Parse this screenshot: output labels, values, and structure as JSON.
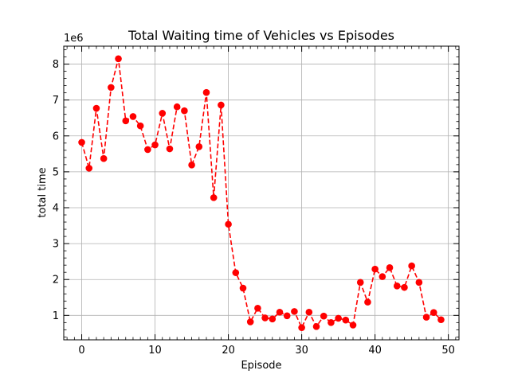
{
  "chart_data": {
    "type": "line",
    "title": "Total Waiting time of Vehicles vs Episodes",
    "xlabel": "Episode",
    "ylabel": "total time",
    "y_offset_label": "1e6",
    "y_scale_factor": 1000000,
    "xlim": [
      -2.45,
      51.45
    ],
    "ylim": [
      320000,
      8500000
    ],
    "xticks": [
      0,
      10,
      20,
      30,
      40,
      50
    ],
    "yticks": [
      1,
      2,
      3,
      4,
      5,
      6,
      7,
      8
    ],
    "grid": true,
    "series": [
      {
        "color": "#ff0000",
        "line_style": "dashed",
        "marker": "circle",
        "x": [
          0,
          1,
          2,
          3,
          4,
          5,
          6,
          7,
          8,
          9,
          10,
          11,
          12,
          13,
          14,
          15,
          16,
          17,
          18,
          19,
          20,
          21,
          22,
          23,
          24,
          25,
          26,
          27,
          28,
          29,
          30,
          31,
          32,
          33,
          34,
          35,
          36,
          37,
          38,
          39,
          40,
          41,
          42,
          43,
          44,
          45,
          46,
          47,
          48,
          49
        ],
        "y": [
          5820000,
          5100000,
          6770000,
          5370000,
          7350000,
          8150000,
          6420000,
          6540000,
          6280000,
          5620000,
          5750000,
          6630000,
          5640000,
          6810000,
          6700000,
          5190000,
          5700000,
          7210000,
          4280000,
          6860000,
          3540000,
          2190000,
          1760000,
          820000,
          1200000,
          930000,
          900000,
          1090000,
          990000,
          1110000,
          660000,
          1090000,
          690000,
          980000,
          800000,
          920000,
          870000,
          730000,
          1920000,
          1370000,
          2290000,
          2080000,
          2330000,
          1820000,
          1780000,
          2380000,
          1920000,
          950000,
          1080000,
          880000
        ]
      }
    ]
  }
}
